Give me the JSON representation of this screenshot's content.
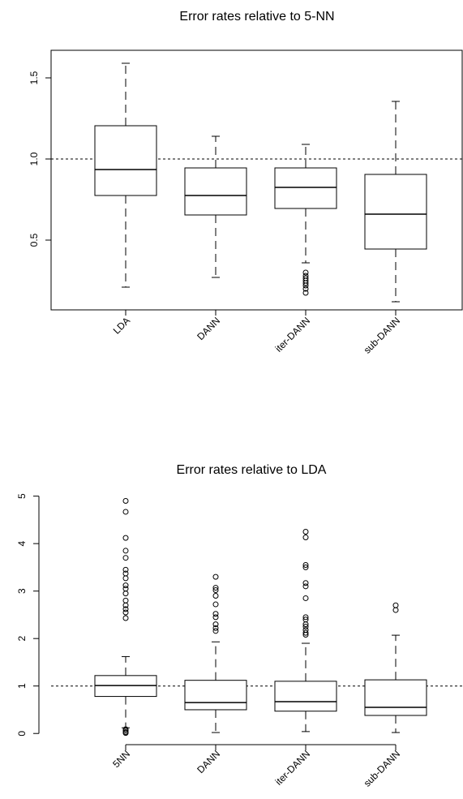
{
  "charts": [
    {
      "type": "boxplot",
      "title": "Error rates relative to 5-NN",
      "xlabel": "",
      "ylabel": "",
      "ylim": [
        0.07,
        1.67
      ],
      "yticks": [
        "0.5",
        "1.0",
        "1.5"
      ],
      "yticks_values": [
        0.5,
        1.0,
        1.5
      ],
      "reference_line": 1.0,
      "grid": false,
      "categories": [
        "LDA",
        "DANN",
        "iter-DANN",
        "sub-DANN"
      ],
      "boxes": [
        {
          "name": "LDA",
          "min": 0.21,
          "q1": 0.775,
          "median": 0.935,
          "q3": 1.205,
          "max": 1.59,
          "outliers": []
        },
        {
          "name": "DANN",
          "min": 0.27,
          "q1": 0.655,
          "median": 0.775,
          "q3": 0.945,
          "max": 1.14,
          "outliers": []
        },
        {
          "name": "iter-DANN",
          "min": 0.36,
          "q1": 0.695,
          "median": 0.825,
          "q3": 0.945,
          "max": 1.09,
          "outliers": [
            0.3,
            0.28,
            0.265,
            0.25,
            0.235,
            0.22,
            0.2,
            0.175
          ]
        },
        {
          "name": "sub-DANN",
          "min": 0.12,
          "q1": 0.445,
          "median": 0.66,
          "q3": 0.905,
          "max": 1.355,
          "outliers": []
        }
      ]
    },
    {
      "type": "boxplot",
      "title": "Error rates relative to LDA",
      "xlabel": "",
      "ylabel": "",
      "ylim": [
        -0.15,
        5.25
      ],
      "yticks": [
        "0",
        "1",
        "2",
        "3",
        "4",
        "5"
      ],
      "yticks_values": [
        0,
        1,
        2,
        3,
        4,
        5
      ],
      "reference_line": 1.0,
      "grid": false,
      "categories": [
        "5NN",
        "DANN",
        "iter-DANN",
        "sub-DANN"
      ],
      "boxes": [
        {
          "name": "5NN",
          "min": 0.12,
          "q1": 0.78,
          "median": 1.01,
          "q3": 1.22,
          "max": 1.62,
          "outliers": [
            4.9,
            4.67,
            4.12,
            3.85,
            3.7,
            3.45,
            3.37,
            3.27,
            3.12,
            3.05,
            2.95,
            2.8,
            2.7,
            2.62,
            2.55,
            2.43,
            0.09,
            0.06,
            0.03,
            0.01
          ]
        },
        {
          "name": "DANN",
          "min": 0.02,
          "q1": 0.5,
          "median": 0.65,
          "q3": 1.12,
          "max": 1.93,
          "outliers": [
            3.3,
            3.07,
            3.02,
            2.9,
            2.72,
            2.52,
            2.45,
            2.3,
            2.22,
            2.16
          ]
        },
        {
          "name": "iter-DANN",
          "min": 0.04,
          "q1": 0.47,
          "median": 0.67,
          "q3": 1.1,
          "max": 1.9,
          "outliers": [
            4.25,
            4.13,
            3.55,
            3.5,
            3.17,
            3.1,
            2.85,
            2.45,
            2.4,
            2.3,
            2.25,
            2.18,
            2.12,
            2.08
          ]
        },
        {
          "name": "sub-DANN",
          "min": 0.02,
          "q1": 0.38,
          "median": 0.55,
          "q3": 1.13,
          "max": 2.07,
          "outliers": [
            2.7,
            2.6
          ]
        }
      ]
    }
  ]
}
